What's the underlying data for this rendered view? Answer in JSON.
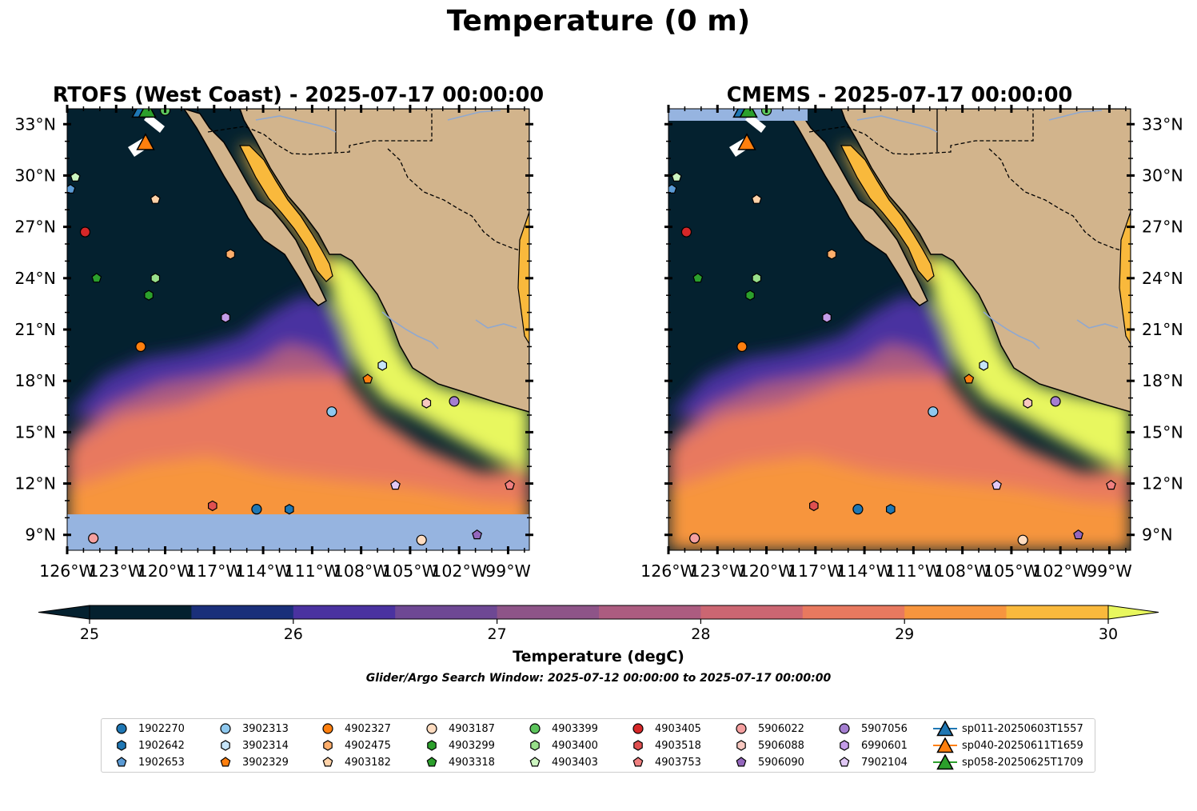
{
  "figure": {
    "suptitle": "Temperature (0 m)",
    "colorbar_label": "Temperature (degC)",
    "search_window": "Glider/Argo Search Window: 2025-07-12 00:00:00 to 2025-07-17 00:00:00"
  },
  "colors": {
    "land": "#d2b48c",
    "nodata": "#96b4e0",
    "river": "#8fa8d0",
    "colormap": [
      "#04212f",
      "#1a2f7a",
      "#4a32a0",
      "#6e4894",
      "#8e5488",
      "#ac5c80",
      "#cc6672",
      "#e8795f",
      "#f7953e",
      "#f9b93c",
      "#e8f75e"
    ]
  },
  "chart_data": [
    {
      "type": "heatmap",
      "title": "RTOFS (West Coast) - 2025-07-17 00:00:00",
      "xlabel": "",
      "ylabel": "",
      "xlim": [
        -126,
        -97.7
      ],
      "ylim": [
        8.1,
        33.9
      ],
      "x_ticks": [
        -126,
        -123,
        -120,
        -117,
        -114,
        -111,
        -108,
        -105,
        -102,
        -99
      ],
      "x_tick_labels": [
        "126°W",
        "123°W",
        "120°W",
        "117°W",
        "114°W",
        "111°W",
        "108°W",
        "105°W",
        "102°W",
        "99°W"
      ],
      "y_ticks": [
        9,
        12,
        15,
        18,
        21,
        24,
        27,
        30,
        33
      ],
      "y_tick_labels": [
        "9°N",
        "12°N",
        "15°N",
        "18°N",
        "21°N",
        "24°N",
        "27°N",
        "30°N",
        "33°N"
      ],
      "nodata_bottom_lat": 10.2,
      "nodata_top_lat": null
    },
    {
      "type": "heatmap",
      "title": "CMEMS - 2025-07-17 00:00:00",
      "xlabel": "",
      "ylabel": "",
      "xlim": [
        -126,
        -97.7
      ],
      "ylim": [
        8.1,
        33.9
      ],
      "x_ticks": [
        -126,
        -123,
        -120,
        -117,
        -114,
        -111,
        -108,
        -105,
        -102,
        -99
      ],
      "x_tick_labels": [
        "126°W",
        "123°W",
        "120°W",
        "117°W",
        "114°W",
        "111°W",
        "108°W",
        "105°W",
        "102°W",
        "99°W"
      ],
      "y_ticks": [
        9,
        12,
        15,
        18,
        21,
        24,
        27,
        30,
        33
      ],
      "y_tick_labels": [
        "9°N",
        "12°N",
        "15°N",
        "18°N",
        "21°N",
        "24°N",
        "27°N",
        "30°N",
        "33°N"
      ],
      "nodata_bottom_lat": null,
      "nodata_top_lat": 33.2
    }
  ],
  "colorbar": {
    "min": 25,
    "max": 30,
    "levels": [
      25,
      25.5,
      26,
      26.5,
      27,
      27.5,
      28,
      28.5,
      29,
      29.5,
      30
    ],
    "ticks": [
      25,
      26,
      27,
      28,
      29,
      30
    ],
    "tick_labels": [
      "25",
      "26",
      "27",
      "28",
      "29",
      "30"
    ],
    "extend": "both"
  },
  "platforms": [
    {
      "id": "1902270",
      "marker": "circle",
      "color": "#1f77b4",
      "lon": -114.4,
      "lat": 10.5
    },
    {
      "id": "1902642",
      "marker": "hexagon",
      "color": "#1f77b4",
      "lon": -112.4,
      "lat": 10.5
    },
    {
      "id": "1902653",
      "marker": "pentagon",
      "color": "#5b9bd5",
      "lon": -125.8,
      "lat": 29.2
    },
    {
      "id": "3902313",
      "marker": "circle",
      "color": "#8ec8ee",
      "lon": -109.8,
      "lat": 16.2
    },
    {
      "id": "3902314",
      "marker": "hexagon",
      "color": "#c6e4f8",
      "lon": -106.7,
      "lat": 18.9
    },
    {
      "id": "3902329",
      "marker": "pentagon",
      "color": "#ff7f0e",
      "lon": -107.6,
      "lat": 18.1
    },
    {
      "id": "4902327",
      "marker": "circle",
      "color": "#ff7f0e",
      "lon": -121.5,
      "lat": 20.0
    },
    {
      "id": "4902475",
      "marker": "hexagon",
      "color": "#ffae6b",
      "lon": -116.0,
      "lat": 25.4
    },
    {
      "id": "4903182",
      "marker": "pentagon",
      "color": "#ffd2a8",
      "lon": -120.6,
      "lat": 28.6
    },
    {
      "id": "4903187",
      "marker": "circle",
      "color": "#ffdcc0",
      "lon": -104.3,
      "lat": 8.7
    },
    {
      "id": "4903299",
      "marker": "hexagon",
      "color": "#2ca02c",
      "lon": -121.0,
      "lat": 23.0
    },
    {
      "id": "4903318",
      "marker": "pentagon",
      "color": "#2ca02c",
      "lon": -124.2,
      "lat": 24.0
    },
    {
      "id": "4903399",
      "marker": "circle",
      "color": "#5cc45c",
      "lon": -120.0,
      "lat": 33.8
    },
    {
      "id": "4903400",
      "marker": "hexagon",
      "color": "#98df8a",
      "lon": -120.6,
      "lat": 24.0
    },
    {
      "id": "4903403",
      "marker": "pentagon",
      "color": "#ccf5c0",
      "lon": -125.5,
      "lat": 29.9
    },
    {
      "id": "4903405",
      "marker": "circle",
      "color": "#d62728",
      "lon": -124.9,
      "lat": 26.7
    },
    {
      "id": "4903518",
      "marker": "hexagon",
      "color": "#e05050",
      "lon": -117.1,
      "lat": 10.7
    },
    {
      "id": "4903753",
      "marker": "pentagon",
      "color": "#f08080",
      "lon": -98.9,
      "lat": 11.9
    },
    {
      "id": "5906022",
      "marker": "circle",
      "color": "#f5a0a0",
      "lon": -124.4,
      "lat": 8.8
    },
    {
      "id": "5906088",
      "marker": "hexagon",
      "color": "#f8c8c0",
      "lon": -104.0,
      "lat": 16.7
    },
    {
      "id": "5906090",
      "marker": "pentagon",
      "color": "#9467bd",
      "lon": -100.9,
      "lat": 9.0
    },
    {
      "id": "5907056",
      "marker": "circle",
      "color": "#a47ed0",
      "lon": -102.3,
      "lat": 16.8
    },
    {
      "id": "6990601",
      "marker": "hexagon",
      "color": "#c49ce8",
      "lon": -116.3,
      "lat": 21.7
    },
    {
      "id": "7902104",
      "marker": "pentagon",
      "color": "#e0c8f5",
      "lon": -105.9,
      "lat": 11.9
    }
  ],
  "gliders": [
    {
      "id": "sp011-20250603T1557",
      "color": "#1f77b4",
      "lon": -121.5,
      "lat": 33.8
    },
    {
      "id": "sp040-20250611T1659",
      "color": "#ff7f0e",
      "lon": -121.2,
      "lat": 31.9
    },
    {
      "id": "sp058-20250625T1709",
      "color": "#2ca02c",
      "lon": -121.1,
      "lat": 33.8
    }
  ]
}
